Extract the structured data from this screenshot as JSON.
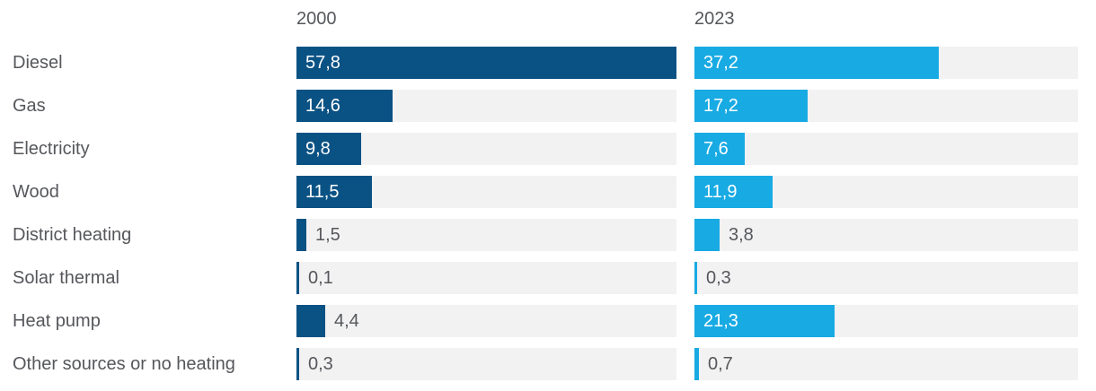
{
  "chart_data": {
    "type": "bar",
    "orientation": "horizontal",
    "categories": [
      "Diesel",
      "Gas",
      "Electricity",
      "Wood",
      "District heating",
      "Solar thermal",
      "Heat pump",
      "Other sources or no heating"
    ],
    "series": [
      {
        "name": "2000",
        "color": "#0b5284",
        "values": [
          57.8,
          14.6,
          9.8,
          11.5,
          1.5,
          0.1,
          4.4,
          0.3
        ],
        "labels": [
          "57,8",
          "14,6",
          "9,8",
          "11,5",
          "1,5",
          "0,1",
          "4,4",
          "0,3"
        ]
      },
      {
        "name": "2023",
        "color": "#18aae3",
        "values": [
          37.2,
          17.2,
          7.6,
          11.9,
          3.8,
          0.3,
          21.3,
          0.7
        ],
        "labels": [
          "37,2",
          "17,2",
          "7,6",
          "11,9",
          "3,8",
          "0,3",
          "21,3",
          "0,7"
        ]
      }
    ],
    "xlim": [
      0,
      57.8
    ],
    "grid": false,
    "legend_position": "column-headers-top",
    "track_color": "#f2f2f3",
    "text_color": "#55575b",
    "value_label_inside_color": "#ffffff",
    "decimal_separator": ","
  }
}
